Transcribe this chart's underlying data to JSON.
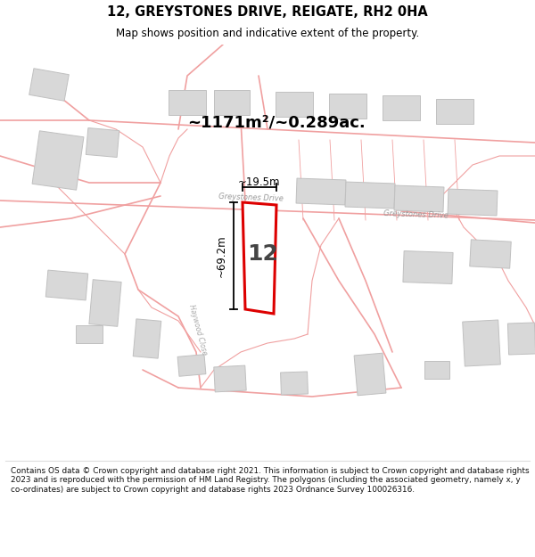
{
  "title": "12, GREYSTONES DRIVE, REIGATE, RH2 0HA",
  "subtitle": "Map shows position and indicative extent of the property.",
  "area_text": "~1171m²/~0.289ac.",
  "label_number": "12",
  "dim_width": "~19.5m",
  "dim_height": "~69.2m",
  "road_label1": "Greystones Drive",
  "road_label2": "Greystones Drive",
  "road_label3": "Haywood Close",
  "footer": "Contains OS data © Crown copyright and database right 2021. This information is subject to Crown copyright and database rights 2023 and is reproduced with the permission of HM Land Registry. The polygons (including the associated geometry, namely x, y co-ordinates) are subject to Crown copyright and database rights 2023 Ordnance Survey 100026316.",
  "map_bg": "#fafafa",
  "title_area_bg": "#ffffff",
  "footer_bg": "#ffffff",
  "plot_color_fill": "#ffffff",
  "plot_color_edge": "#dd0000",
  "road_color": "#f0a0a0",
  "building_fill": "#d8d8d8",
  "building_edge": "#c0c0c0",
  "boundary_color": "#f0a0a0"
}
